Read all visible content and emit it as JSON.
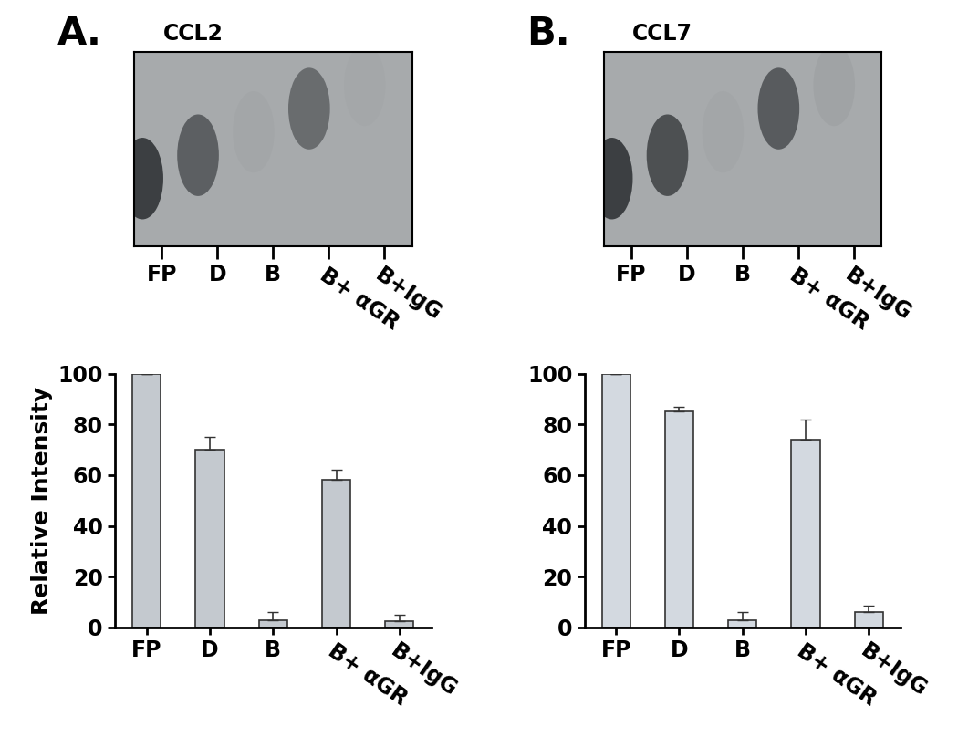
{
  "chart_data": [
    {
      "type": "bar",
      "panel": "A.",
      "title": "CCL2",
      "y_label": "Relative Intensity",
      "categories": [
        "FP",
        "D",
        "B",
        "B+ αGR",
        "B+IgG"
      ],
      "values": [
        100,
        70,
        3,
        58,
        2.5
      ],
      "error": [
        0,
        5,
        3,
        4,
        2.5
      ],
      "color": "#c4c9cf",
      "ylim": [
        0,
        100
      ],
      "yticks": [
        0,
        20,
        40,
        60,
        80,
        100
      ]
    },
    {
      "type": "bar",
      "panel": "B.",
      "title": "CCL7",
      "categories": [
        "FP",
        "D",
        "B",
        "B+ αGR",
        "B+IgG"
      ],
      "values": [
        100,
        85,
        3,
        74,
        6
      ],
      "error": [
        0,
        2,
        3,
        8,
        2.5
      ],
      "color": "#d3d9e0",
      "ylim": [
        0,
        100
      ],
      "yticks": [
        0,
        20,
        40,
        60,
        80,
        100
      ]
    }
  ]
}
